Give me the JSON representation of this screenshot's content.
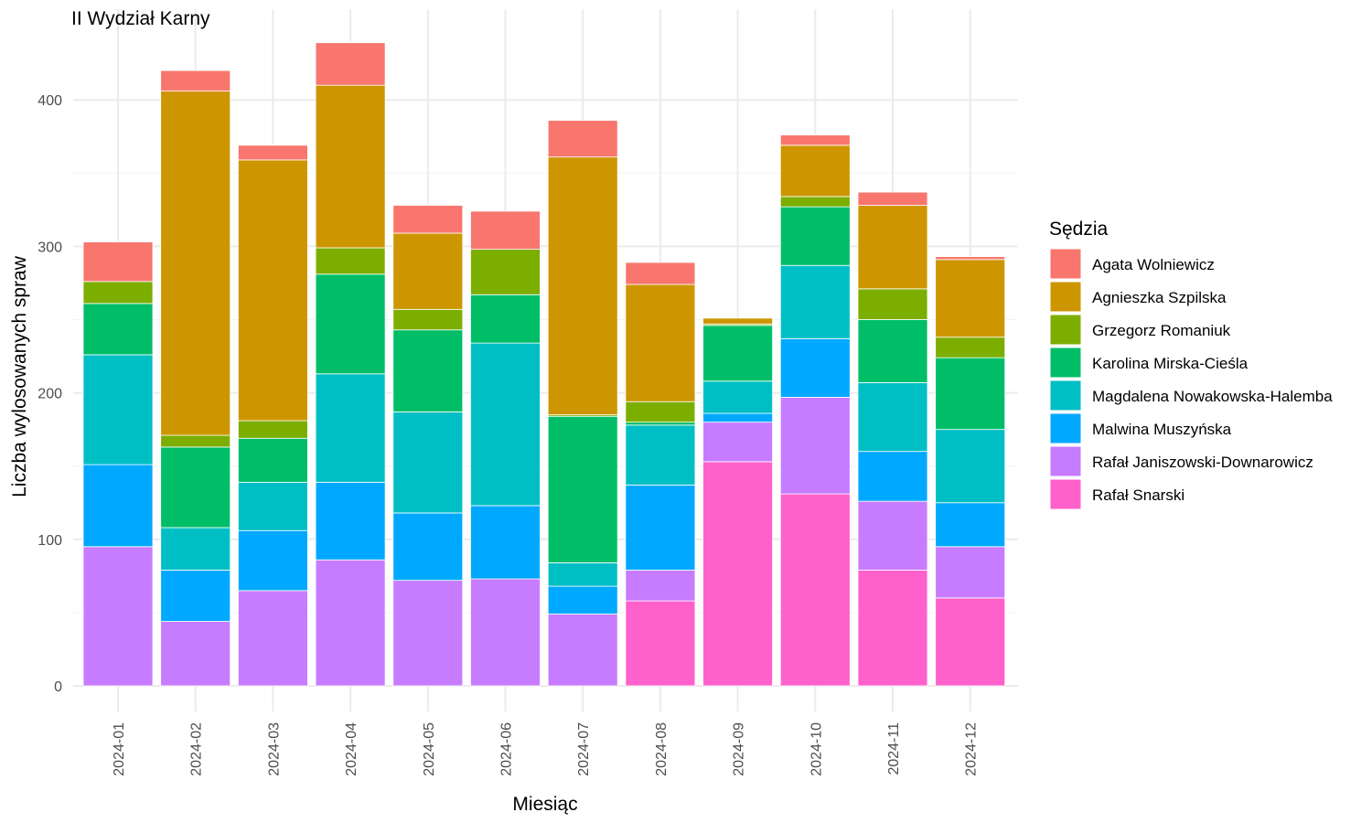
{
  "chart_data": {
    "type": "bar",
    "stacked": true,
    "title": "II Wydział Karny",
    "xlabel": "Miesiąc",
    "ylabel": "Liczba wylosowanych spraw",
    "ylim": [
      0,
      440
    ],
    "yticks": [
      0,
      100,
      200,
      300,
      400
    ],
    "grid": true,
    "legend_title": "Sędzia",
    "legend_position": "right",
    "categories": [
      "2024-01",
      "2024-02",
      "2024-03",
      "2024-04",
      "2024-05",
      "2024-06",
      "2024-07",
      "2024-08",
      "2024-09",
      "2024-10",
      "2024-11",
      "2024-12"
    ],
    "series": [
      {
        "name": "Agata Wolniewicz",
        "color": "#F8766D",
        "values": [
          27,
          14,
          10,
          29,
          19,
          26,
          25,
          15,
          0,
          7,
          9,
          2
        ]
      },
      {
        "name": "Agnieszka Szpilska",
        "color": "#CD9600",
        "values": [
          0,
          235,
          178,
          111,
          52,
          0,
          176,
          80,
          4,
          35,
          57,
          53
        ]
      },
      {
        "name": "Grzegorz Romaniuk",
        "color": "#7CAE00",
        "values": [
          15,
          8,
          12,
          18,
          14,
          31,
          1,
          14,
          1,
          7,
          21,
          14
        ]
      },
      {
        "name": "Karolina Mirska-Cieśla",
        "color": "#00BE67",
        "values": [
          35,
          55,
          30,
          68,
          56,
          33,
          100,
          2,
          38,
          40,
          43,
          49
        ]
      },
      {
        "name": "Magdalena Nowakowska-Halemba",
        "color": "#00BFC4",
        "values": [
          75,
          29,
          33,
          74,
          69,
          111,
          16,
          41,
          22,
          50,
          47,
          50
        ]
      },
      {
        "name": "Malwina Muszyńska",
        "color": "#00A9FF",
        "values": [
          56,
          35,
          41,
          53,
          46,
          50,
          19,
          58,
          6,
          40,
          34,
          30
        ]
      },
      {
        "name": "Rafał Janiszowski-Downarowicz",
        "color": "#C77CFF",
        "values": [
          95,
          44,
          65,
          86,
          72,
          73,
          49,
          21,
          27,
          66,
          47,
          35
        ]
      },
      {
        "name": "Rafał Snarski",
        "color": "#FF61CC",
        "values": [
          0,
          0,
          0,
          0,
          0,
          0,
          0,
          58,
          153,
          131,
          79,
          60
        ]
      }
    ]
  }
}
